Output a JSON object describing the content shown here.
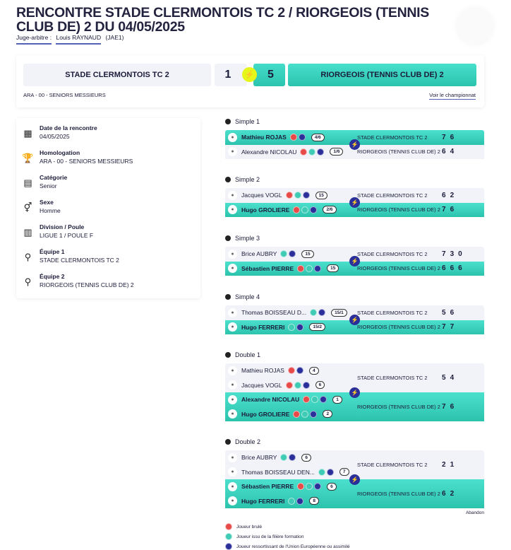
{
  "title": "RENCONTRE STADE CLERMONTOIS TC 2 / RIORGEOIS (TENNIS CLUB DE) 2 DU 04/05/2025",
  "referee": {
    "label": "Juge-arbitre :",
    "name": "Louis RAYNAUD",
    "grade": "(JAE1)"
  },
  "scoreboard": {
    "team1": "STADE CLERMONTOIS TC 2",
    "score1": "1",
    "score2": "5",
    "team2": "RIORGEOIS (TENNIS CLUB DE) 2",
    "homologation": "ARA - 00 - SENIORS MESSIEURS",
    "link": "Voir le championnat",
    "winner": "team2"
  },
  "info": [
    {
      "icon": "calendar-icon",
      "glyph": "▦",
      "label": "Date de la rencontre",
      "value": "04/05/2025"
    },
    {
      "icon": "trophy-icon",
      "glyph": "🏆",
      "label": "Homologation",
      "value": "ARA - 00 - SENIORS MESSIEURS"
    },
    {
      "icon": "document-icon",
      "glyph": "▤",
      "label": "Catégorie",
      "value": "Senior"
    },
    {
      "icon": "gender-icon",
      "glyph": "⚥",
      "label": "Sexe",
      "value": "Homme"
    },
    {
      "icon": "division-icon",
      "glyph": "▥",
      "label": "Division / Poule",
      "value": "LIGUE 1 / POULE F"
    },
    {
      "icon": "racket-1-icon",
      "glyph": "⚲",
      "label": "Équipe 1",
      "value": "STADE CLERMONTOIS TC 2"
    },
    {
      "icon": "racket-2-icon",
      "glyph": "⚲",
      "label": "Équipe 2",
      "value": "RIORGEOIS (TENNIS CLUB DE) 2"
    }
  ],
  "matches": [
    {
      "title": "Simple 1",
      "teams": [
        {
          "name": "STADE CLERMONTOIS TC 2",
          "win": true,
          "scores": [
            "7",
            "6"
          ],
          "players": [
            {
              "name": "Mathieu ROJAS",
              "badges": [
                "r",
                "b"
              ],
              "rank": "4/6"
            }
          ]
        },
        {
          "name": "RIORGEOIS (TENNIS CLUB DE) 2",
          "win": false,
          "scores": [
            "6",
            "4"
          ],
          "players": [
            {
              "name": "Alexandre NICOLAU",
              "badges": [
                "r",
                "g",
                "b"
              ],
              "rank": "1/6"
            }
          ]
        }
      ]
    },
    {
      "title": "Simple 2",
      "teams": [
        {
          "name": "STADE CLERMONTOIS TC 2",
          "win": false,
          "scores": [
            "6",
            "2"
          ],
          "players": [
            {
              "name": "Jacques VOGL",
              "badges": [
                "r",
                "g",
                "b"
              ],
              "rank": "15"
            }
          ]
        },
        {
          "name": "RIORGEOIS (TENNIS CLUB DE) 2",
          "win": true,
          "scores": [
            "7",
            "6"
          ],
          "players": [
            {
              "name": "Hugo GROLIERE",
              "badges": [
                "r",
                "g",
                "b"
              ],
              "rank": "2/6"
            }
          ]
        }
      ]
    },
    {
      "title": "Simple 3",
      "teams": [
        {
          "name": "STADE CLERMONTOIS TC 2",
          "win": false,
          "scores": [
            "7",
            "3",
            "0"
          ],
          "players": [
            {
              "name": "Brice AUBRY",
              "badges": [
                "g",
                "b"
              ],
              "rank": "15"
            }
          ]
        },
        {
          "name": "RIORGEOIS (TENNIS CLUB DE) 2",
          "win": true,
          "scores": [
            "6",
            "6",
            "6"
          ],
          "players": [
            {
              "name": "Sébastien PIERRE",
              "badges": [
                "r",
                "g",
                "b"
              ],
              "rank": "15"
            }
          ]
        }
      ]
    },
    {
      "title": "Simple 4",
      "teams": [
        {
          "name": "STADE CLERMONTOIS TC 2",
          "win": false,
          "scores": [
            "5",
            "6"
          ],
          "players": [
            {
              "name": "Thomas BOISSEAU D...",
              "badges": [
                "g",
                "b"
              ],
              "rank": "15/1"
            }
          ]
        },
        {
          "name": "RIORGEOIS (TENNIS CLUB DE) 2",
          "win": true,
          "scores": [
            "7",
            "7"
          ],
          "players": [
            {
              "name": "Hugo FERRERI",
              "badges": [
                "g",
                "b"
              ],
              "rank": "15/2"
            }
          ]
        }
      ]
    },
    {
      "title": "Double 1",
      "teams": [
        {
          "name": "STADE CLERMONTOIS TC 2",
          "win": false,
          "scores": [
            "5",
            "4"
          ],
          "players": [
            {
              "name": "Mathieu ROJAS",
              "badges": [
                "r",
                "b"
              ],
              "rank": "4"
            },
            {
              "name": "Jacques VOGL",
              "badges": [
                "r",
                "g",
                "b"
              ],
              "rank": "6"
            }
          ]
        },
        {
          "name": "RIORGEOIS (TENNIS CLUB DE) 2",
          "win": true,
          "scores": [
            "7",
            "6"
          ],
          "players": [
            {
              "name": "Alexandre NICOLAU",
              "badges": [
                "r",
                "g",
                "b"
              ],
              "rank": "1"
            },
            {
              "name": "Hugo GROLIERE",
              "badges": [
                "r",
                "g",
                "b"
              ],
              "rank": "2"
            }
          ]
        }
      ]
    },
    {
      "title": "Double 2",
      "teams": [
        {
          "name": "STADE CLERMONTOIS TC 2",
          "win": false,
          "scores": [
            "2",
            "1"
          ],
          "players": [
            {
              "name": "Brice AUBRY",
              "badges": [
                "g",
                "b"
              ],
              "rank": "6"
            },
            {
              "name": "Thomas BOISSEAU DEN...",
              "badges": [
                "g",
                "b"
              ],
              "rank": "7"
            }
          ]
        },
        {
          "name": "RIORGEOIS (TENNIS CLUB DE) 2",
          "win": true,
          "scores": [
            "6",
            "2"
          ],
          "players": [
            {
              "name": "Sébastien PIERRE",
              "badges": [
                "r",
                "g",
                "b"
              ],
              "rank": "6"
            },
            {
              "name": "Hugo FERRERI",
              "badges": [
                "g",
                "b"
              ],
              "rank": "8"
            }
          ]
        }
      ]
    }
  ],
  "abandon": "Abandon",
  "legend": [
    {
      "badge": "r",
      "icon": "burned-player-icon",
      "label": "Joueur brulé"
    },
    {
      "badge": "g",
      "icon": "training-player-icon",
      "label": "Joueur issu de la filière formation"
    },
    {
      "badge": "b",
      "icon": "eu-player-icon",
      "label": "Joueur ressortissant de l'Union Européenne ou assimilé"
    }
  ],
  "colors": {
    "teal": "#2cc3ad",
    "navy": "#2a2f9a",
    "red": "#e84a4a",
    "bolt": "#e6f51a",
    "link": "#5560b8"
  }
}
